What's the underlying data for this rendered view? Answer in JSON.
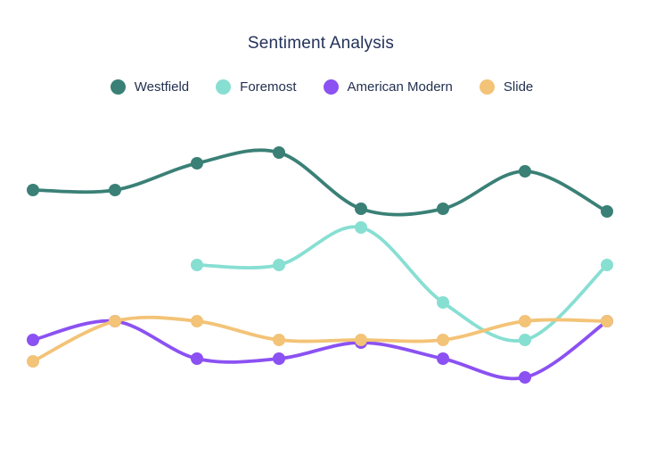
{
  "chart": {
    "title": "Sentiment Analysis"
  },
  "chart_data": {
    "type": "line",
    "title": "Sentiment Analysis",
    "curve": "smooth",
    "grid": false,
    "axes_visible": false,
    "legend_position": "top",
    "x_slots": [
      1,
      2,
      3,
      4,
      5,
      6,
      7,
      8
    ],
    "xlabel": "",
    "ylabel": "",
    "ylim": [
      0,
      1
    ],
    "series": [
      {
        "name": "Westfield",
        "color": "#3a8076",
        "start_index": 0,
        "values": [
          0.79,
          0.79,
          0.89,
          0.93,
          0.72,
          0.72,
          0.86,
          0.71
        ]
      },
      {
        "name": "Foremost",
        "color": "#87dfd2",
        "start_index": 2,
        "values": [
          0.51,
          0.51,
          0.65,
          0.37,
          0.23,
          0.51
        ]
      },
      {
        "name": "American Modern",
        "color": "#8b51f2",
        "start_index": 0,
        "values": [
          0.23,
          0.3,
          0.16,
          0.16,
          0.22,
          0.16,
          0.09,
          0.3
        ]
      },
      {
        "name": "Slide",
        "color": "#f3c377",
        "start_index": 0,
        "values": [
          0.15,
          0.3,
          0.3,
          0.23,
          0.23,
          0.23,
          0.3,
          0.3
        ]
      }
    ]
  }
}
